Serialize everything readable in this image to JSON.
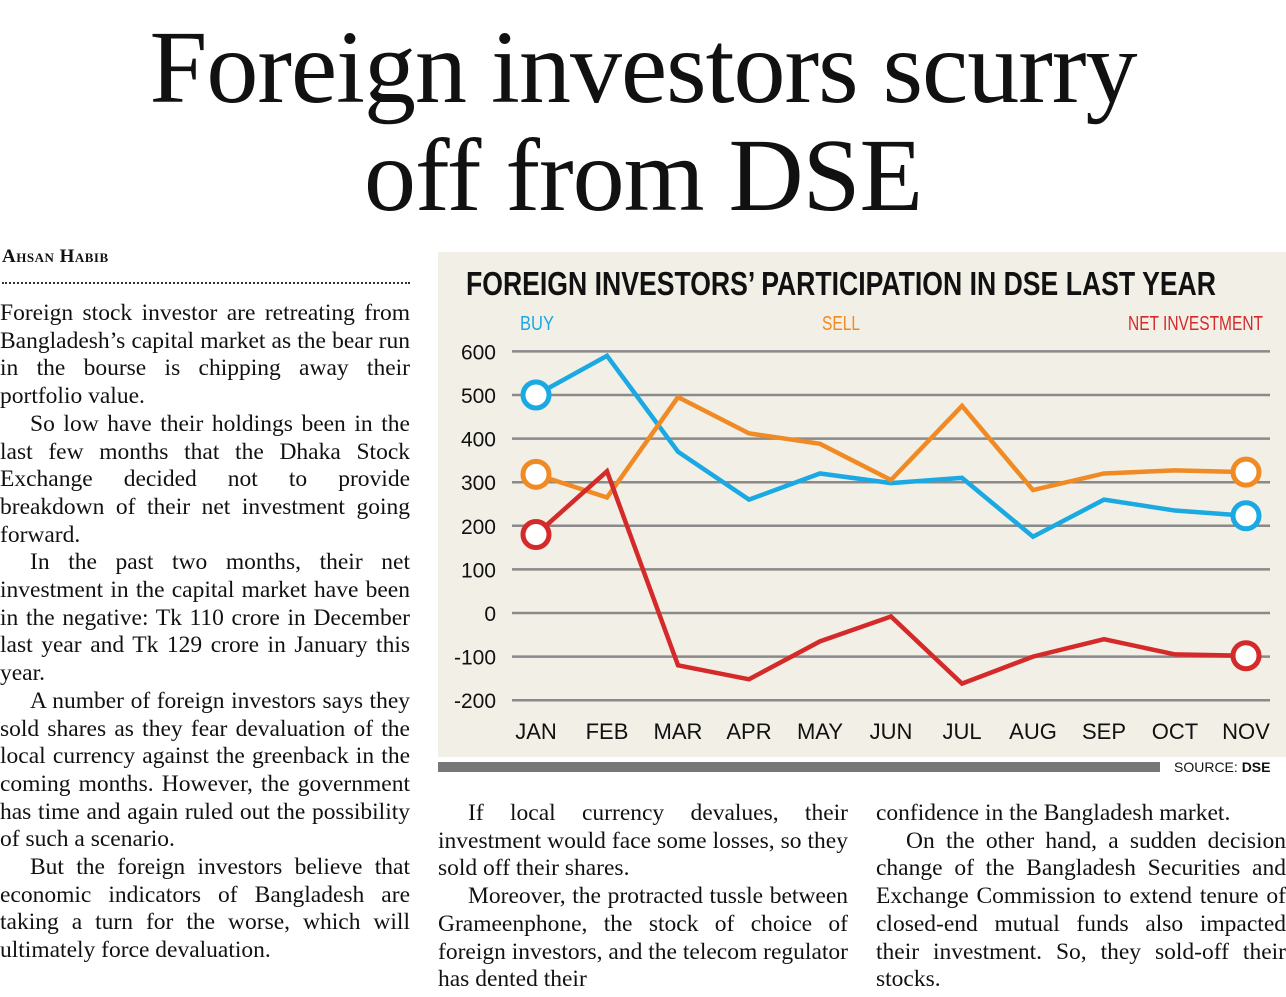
{
  "headline": {
    "line1": "Foreign investors scurry",
    "line2": "off from DSE"
  },
  "byline": "Ahsan Habib",
  "column1": [
    "Foreign stock investor are retreating from Bangladesh’s capital market as the bear run in the bourse is chipping away their portfolio value.",
    "So low have their holdings been in the last few months that the Dhaka Stock Exchange decided not to provide breakdown of their net investment going forward.",
    "In the past two months, their net investment in the capital market have been in the negative: Tk 110 crore in December last year and Tk 129 crore in January this year.",
    "A number of foreign investors says they sold shares as they fear devaluation of the local currency against the greenback in the coming months. However, the government has time and again ruled out the possibility of such a scenario.",
    "But the foreign investors believe that economic indicators of Bangladesh are taking a turn for the worse, which will ultimately force devaluation."
  ],
  "column2": [
    "If local currency devalues, their investment would face some losses, so they sold off their shares.",
    "Moreover, the protracted tussle between Grameenphone, the stock of choice of foreign investors, and the telecom regulator has dented their"
  ],
  "column3": [
    "confidence in the Bangladesh market.",
    "On the other hand, a sudden decision change of the Bangladesh Securities and Exchange Commission to extend tenure of closed-end mutual funds also impacted their investment. So, they sold-off their stocks."
  ],
  "source": {
    "label": "SOURCE:",
    "value": "DSE"
  },
  "chart_data": {
    "type": "line",
    "title": "FOREIGN INVESTORS’ PARTICIPATION IN DSE LAST YEAR",
    "categories": [
      "JAN",
      "FEB",
      "MAR",
      "APR",
      "MAY",
      "JUN",
      "JUL",
      "AUG",
      "SEP",
      "OCT",
      "NOV"
    ],
    "yticks": [
      "600",
      "500",
      "400",
      "300",
      "200",
      "100",
      "0",
      "-100",
      "-200"
    ],
    "ylim": [
      -200,
      600
    ],
    "grid": true,
    "legend_placement": "top",
    "series": [
      {
        "name": "BUY",
        "color": "#1aa9e2",
        "values": [
          500,
          590,
          370,
          260,
          320,
          298,
          310,
          175,
          260,
          235,
          223
        ]
      },
      {
        "name": "SELL",
        "color": "#f08a24",
        "values": [
          318,
          265,
          495,
          412,
          388,
          305,
          475,
          282,
          320,
          327,
          323
        ]
      },
      {
        "name": "NET INVESTMENT",
        "color": "#d42a2a",
        "values": [
          180,
          325,
          -120,
          -152,
          -65,
          -8,
          -162,
          -100,
          -60,
          -95,
          -98
        ]
      }
    ]
  }
}
